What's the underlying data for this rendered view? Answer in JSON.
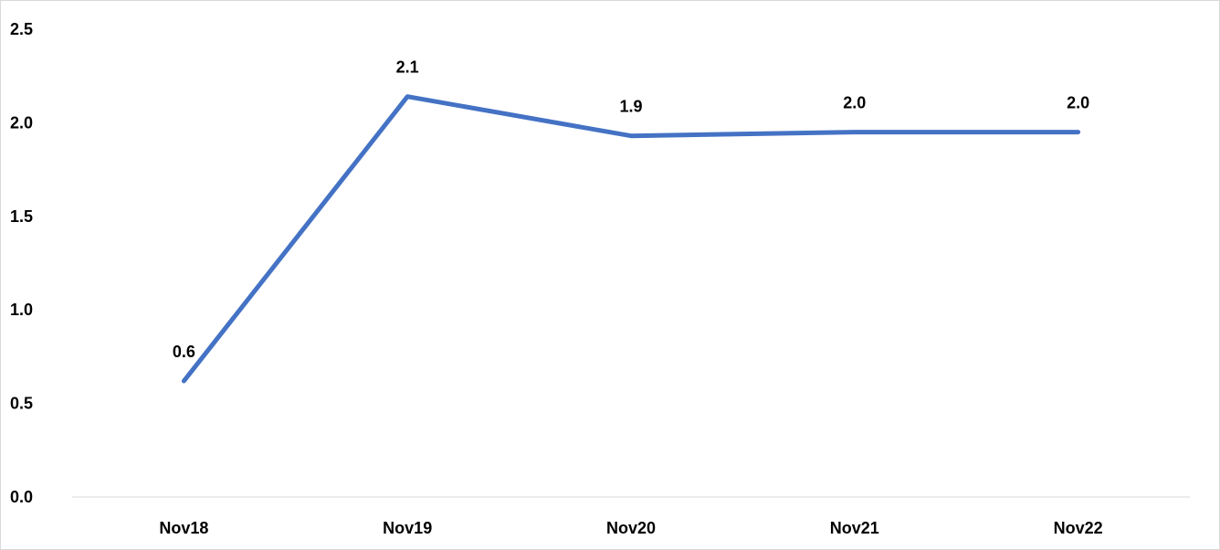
{
  "chart_data": {
    "type": "line",
    "title": "",
    "xlabel": "",
    "ylabel": "",
    "categories": [
      "Nov18",
      "Nov19",
      "Nov20",
      "Nov21",
      "Nov22"
    ],
    "series": [
      {
        "values": [
          0.62,
          2.14,
          1.93,
          1.95,
          1.95
        ],
        "data_labels": [
          "0.6",
          "2.1",
          "1.9",
          "2.0",
          "2.0"
        ],
        "color": "#4472C4"
      }
    ],
    "ylim": [
      0,
      2.5
    ],
    "y_ticks": [
      "0.0",
      "0.5",
      "1.0",
      "1.5",
      "2.0",
      "2.5"
    ],
    "grid": false,
    "legend": "none"
  }
}
